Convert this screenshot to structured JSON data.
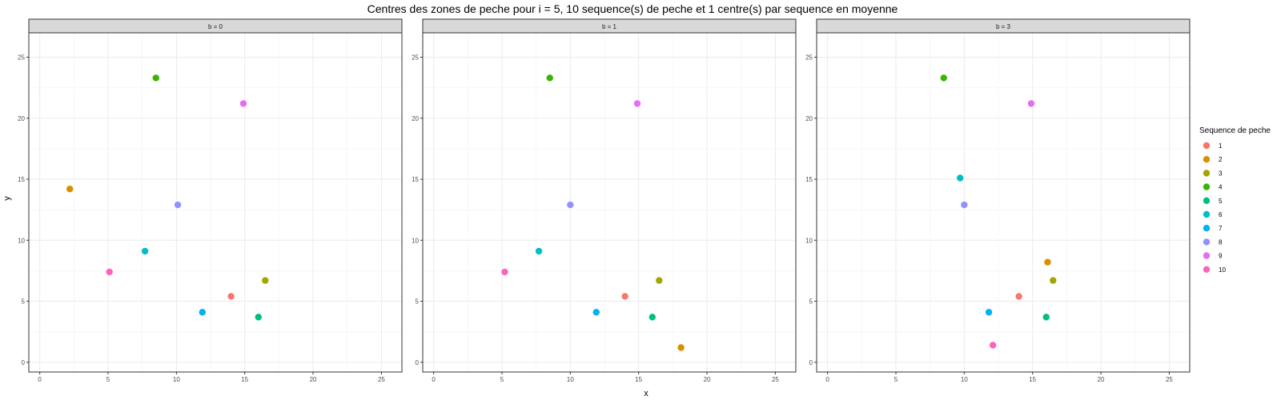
{
  "chart_data": {
    "type": "scatter",
    "title": "Centres des zones de peche pour i = 5, 10 sequence(s) de peche et 1 centre(s) par sequence en moyenne",
    "xlabel": "x",
    "ylabel": "y",
    "xlim": [
      -0.8,
      26.5
    ],
    "ylim": [
      -0.8,
      27
    ],
    "x_ticks": [
      0,
      5,
      10,
      15,
      20,
      25
    ],
    "y_ticks": [
      0,
      5,
      10,
      15,
      20,
      25
    ],
    "grid": true,
    "legend": {
      "title": "Sequence de peche",
      "placement": "right",
      "entries": [
        {
          "label": "1",
          "color": "#F8766D"
        },
        {
          "label": "2",
          "color": "#D89000"
        },
        {
          "label": "3",
          "color": "#A3A500"
        },
        {
          "label": "4",
          "color": "#39B600"
        },
        {
          "label": "5",
          "color": "#00BF7D"
        },
        {
          "label": "6",
          "color": "#00BFC4"
        },
        {
          "label": "7",
          "color": "#00B0F6"
        },
        {
          "label": "8",
          "color": "#9590FF"
        },
        {
          "label": "9",
          "color": "#E76BF3"
        },
        {
          "label": "10",
          "color": "#FF62BC"
        }
      ]
    },
    "facets": [
      {
        "label": "b = 0",
        "points": [
          {
            "seq": "1",
            "x": 14.0,
            "y": 5.4
          },
          {
            "seq": "2",
            "x": 2.2,
            "y": 14.2
          },
          {
            "seq": "3",
            "x": 16.5,
            "y": 6.7
          },
          {
            "seq": "4",
            "x": 8.5,
            "y": 23.3
          },
          {
            "seq": "5",
            "x": 16.0,
            "y": 3.7
          },
          {
            "seq": "6",
            "x": 7.7,
            "y": 9.1
          },
          {
            "seq": "7",
            "x": 11.9,
            "y": 4.1
          },
          {
            "seq": "8",
            "x": 10.1,
            "y": 12.9
          },
          {
            "seq": "9",
            "x": 14.9,
            "y": 21.2
          },
          {
            "seq": "10",
            "x": 5.1,
            "y": 7.4
          }
        ]
      },
      {
        "label": "b = 1",
        "points": [
          {
            "seq": "1",
            "x": 14.0,
            "y": 5.4
          },
          {
            "seq": "2",
            "x": 18.1,
            "y": 1.2
          },
          {
            "seq": "3",
            "x": 16.5,
            "y": 6.7
          },
          {
            "seq": "4",
            "x": 8.5,
            "y": 23.3
          },
          {
            "seq": "5",
            "x": 16.0,
            "y": 3.7
          },
          {
            "seq": "6",
            "x": 7.7,
            "y": 9.1
          },
          {
            "seq": "7",
            "x": 11.9,
            "y": 4.1
          },
          {
            "seq": "8",
            "x": 10.0,
            "y": 12.9
          },
          {
            "seq": "9",
            "x": 14.9,
            "y": 21.2
          },
          {
            "seq": "10",
            "x": 5.2,
            "y": 7.4
          }
        ]
      },
      {
        "label": "b = 3",
        "points": [
          {
            "seq": "1",
            "x": 14.0,
            "y": 5.4
          },
          {
            "seq": "2",
            "x": 16.1,
            "y": 8.2
          },
          {
            "seq": "3",
            "x": 16.5,
            "y": 6.7
          },
          {
            "seq": "4",
            "x": 8.5,
            "y": 23.3
          },
          {
            "seq": "5",
            "x": 16.0,
            "y": 3.7
          },
          {
            "seq": "6",
            "x": 9.7,
            "y": 15.1
          },
          {
            "seq": "7",
            "x": 11.8,
            "y": 4.1
          },
          {
            "seq": "8",
            "x": 10.0,
            "y": 12.9
          },
          {
            "seq": "9",
            "x": 14.9,
            "y": 21.2
          },
          {
            "seq": "10",
            "x": 12.1,
            "y": 1.4
          }
        ]
      }
    ]
  }
}
